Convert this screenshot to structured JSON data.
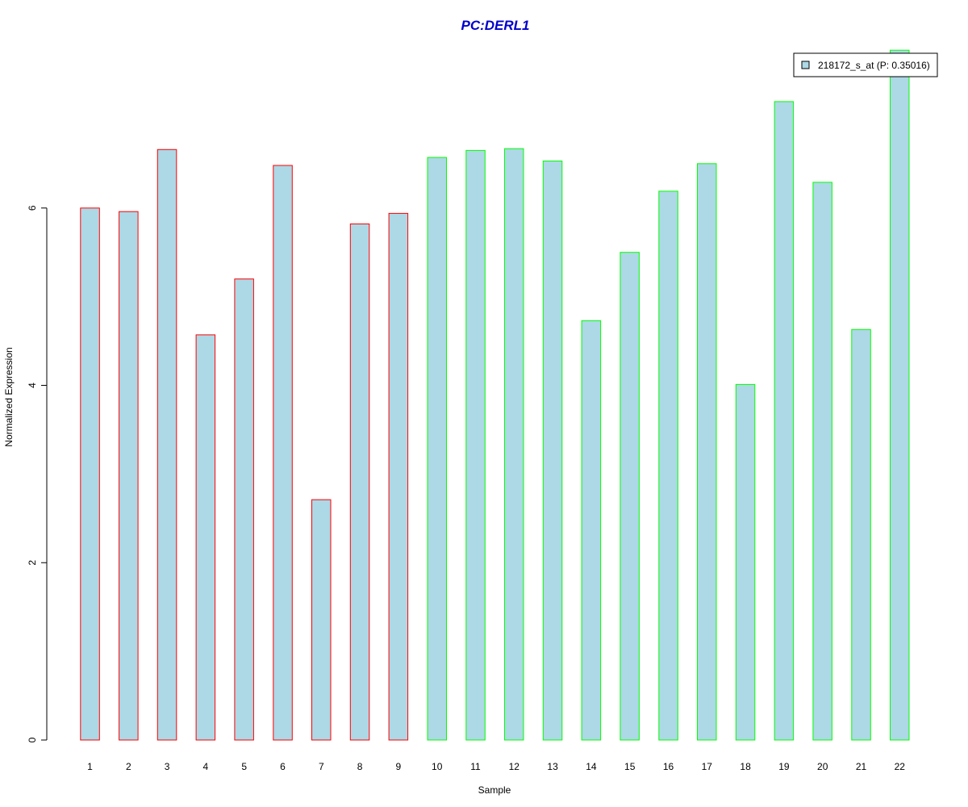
{
  "chart_data": {
    "type": "bar",
    "title": "PC:DERL1",
    "xlabel": "Sample",
    "ylabel": "Normalized Expression",
    "categories": [
      "1",
      "2",
      "3",
      "4",
      "5",
      "6",
      "7",
      "8",
      "9",
      "10",
      "11",
      "12",
      "13",
      "14",
      "15",
      "16",
      "17",
      "18",
      "19",
      "20",
      "21",
      "22"
    ],
    "values": [
      6.0,
      5.96,
      6.66,
      4.57,
      5.2,
      6.48,
      2.71,
      5.82,
      5.94,
      6.57,
      6.65,
      6.67,
      6.53,
      4.73,
      5.5,
      6.19,
      6.5,
      4.01,
      7.2,
      6.29,
      4.63,
      7.78
    ],
    "group": [
      "a",
      "a",
      "a",
      "a",
      "a",
      "a",
      "a",
      "a",
      "a",
      "b",
      "b",
      "b",
      "b",
      "b",
      "b",
      "b",
      "b",
      "b",
      "b",
      "b",
      "b",
      "b"
    ],
    "y_ticks": [
      0,
      2,
      4,
      6
    ],
    "ylim": [
      0,
      7.8
    ],
    "grid": false,
    "legend": {
      "position": "top-right",
      "entries": [
        {
          "label": "218172_s_at (P: 0.35016)",
          "color": "#add8e6"
        }
      ]
    },
    "colors": {
      "fill": "#add8e6",
      "border_group_a": "#ff0000",
      "border_group_b": "#00ff00",
      "title": "#0000cc"
    }
  }
}
